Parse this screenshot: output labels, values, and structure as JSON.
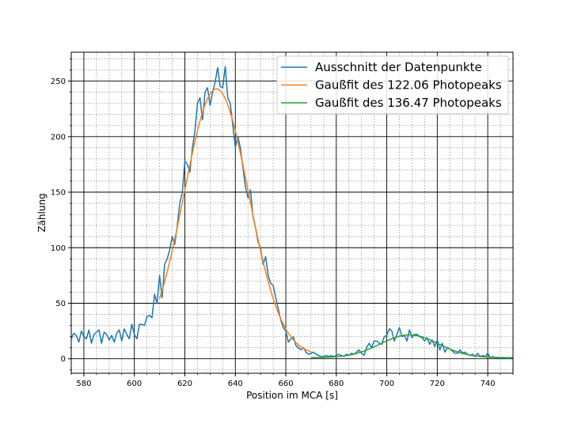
{
  "chart_data": {
    "type": "line",
    "title": "",
    "xlabel": "Position im MCA [s]",
    "ylabel": "Zählung",
    "xlim": [
      575,
      750
    ],
    "ylim": [
      -13,
      276
    ],
    "xticks": [
      580,
      600,
      620,
      640,
      660,
      680,
      700,
      720,
      740
    ],
    "yticks": [
      0,
      50,
      100,
      150,
      200,
      250
    ],
    "grid": "major and minor",
    "legend_position": "top-right",
    "series": [
      {
        "name": "Ausschnitt der Datenpunkte",
        "color": "#1f77b4",
        "style": "data",
        "x": [
          575,
          576,
          577,
          578,
          579,
          580,
          581,
          582,
          583,
          584,
          585,
          586,
          587,
          588,
          589,
          590,
          591,
          592,
          593,
          594,
          595,
          596,
          597,
          598,
          599,
          600,
          601,
          602,
          603,
          604,
          605,
          606,
          607,
          608,
          609,
          610,
          611,
          612,
          613,
          614,
          615,
          616,
          617,
          618,
          619,
          620,
          621,
          622,
          623,
          624,
          625,
          626,
          627,
          628,
          629,
          630,
          631,
          632,
          633,
          634,
          635,
          636,
          637,
          638,
          639,
          640,
          641,
          642,
          643,
          644,
          645,
          646,
          647,
          648,
          649,
          650,
          651,
          652,
          653,
          654,
          655,
          656,
          657,
          658,
          659,
          660,
          661,
          662,
          663,
          664,
          665,
          666,
          667,
          668,
          669,
          670,
          671,
          672,
          673,
          674,
          675,
          676,
          677,
          678,
          679,
          680,
          681,
          682,
          683,
          684,
          685,
          686,
          687,
          688,
          689,
          690,
          691,
          692,
          693,
          694,
          695,
          696,
          697,
          698,
          699,
          700,
          701,
          702,
          703,
          704,
          705,
          706,
          707,
          708,
          709,
          710,
          711,
          712,
          713,
          714,
          715,
          716,
          717,
          718,
          719,
          720,
          721,
          722,
          723,
          724,
          725,
          726,
          727,
          728,
          729,
          730,
          731,
          732,
          733,
          734,
          735,
          736,
          737,
          738,
          739,
          740,
          741,
          742,
          743,
          744,
          745,
          746,
          747,
          748,
          749,
          750
        ],
        "y": [
          18,
          23,
          21,
          15,
          25,
          20,
          18,
          26,
          14,
          22,
          24,
          26,
          14,
          24,
          22,
          17,
          21,
          15,
          23,
          26,
          16,
          27,
          22,
          18,
          31,
          22,
          18,
          31,
          31,
          30,
          38,
          39,
          37,
          58,
          50,
          75,
          55,
          85,
          90,
          98,
          110,
          103,
          120,
          140,
          150,
          178,
          175,
          168,
          190,
          205,
          230,
          235,
          215,
          240,
          244,
          228,
          240,
          249,
          262,
          245,
          244,
          263,
          235,
          230,
          210,
          190,
          200,
          190,
          172,
          155,
          145,
          152,
          128,
          118,
          105,
          100,
          85,
          92,
          75,
          68,
          66,
          55,
          45,
          35,
          28,
          25,
          15,
          18,
          20,
          12,
          10,
          8,
          10,
          6,
          4,
          5,
          6,
          4,
          3,
          2,
          2,
          3,
          2,
          3,
          2,
          3,
          4,
          3,
          2,
          4,
          3,
          5,
          4,
          6,
          8,
          5,
          3,
          10,
          14,
          10,
          16,
          16,
          14,
          13,
          20,
          21,
          27,
          25,
          16,
          22,
          28,
          20,
          21,
          16,
          26,
          19,
          22,
          22,
          20,
          19,
          16,
          19,
          13,
          17,
          11,
          17,
          8,
          14,
          6,
          10,
          9,
          7,
          5,
          5,
          8,
          5,
          6,
          4,
          3,
          4,
          2,
          5,
          2,
          3,
          2,
          5,
          1,
          2,
          1,
          1,
          0,
          1,
          1,
          0,
          1,
          1
        ]
      },
      {
        "name": "Gaußfit des 122.06 Photopeaks",
        "color": "#ff7f0e",
        "style": "fit",
        "amplitude": 240,
        "mean": 632.5,
        "sigma": 12.8,
        "offset": 3,
        "x_range": [
          610,
          670
        ]
      },
      {
        "name": "Gaußfit des 136.47 Photopeaks",
        "color": "#2ca02c",
        "style": "fit",
        "amplitude": 20.5,
        "mean": 709,
        "sigma": 11.5,
        "offset": 1,
        "x_range": [
          670,
          750
        ]
      }
    ]
  }
}
